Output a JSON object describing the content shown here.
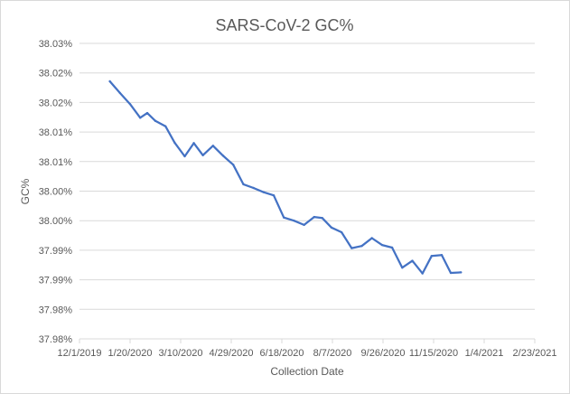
{
  "chart_data": {
    "type": "line",
    "title": "SARS-CoV-2 GC%",
    "xlabel": "Collection Date",
    "ylabel": "GC%",
    "xlim": [
      "2019-12-01",
      "2021-02-23"
    ],
    "ylim": [
      37.976,
      38.032
    ],
    "grid": "horizontal",
    "legend": "none",
    "colors": {
      "line": "#4472c4",
      "grid": "#d9d9d9",
      "text": "#595959"
    },
    "x_tick_labels": [
      "12/1/2019",
      "1/20/2020",
      "3/10/2020",
      "4/29/2020",
      "6/18/2020",
      "8/7/2020",
      "9/26/2020",
      "11/15/2020",
      "1/4/2021",
      "2/23/2021"
    ],
    "x_tick_dates": [
      "2019-12-01",
      "2020-01-20",
      "2020-03-10",
      "2020-04-29",
      "2020-06-18",
      "2020-08-07",
      "2020-09-26",
      "2020-11-15",
      "2021-01-04",
      "2021-02-23"
    ],
    "y_tick_labels": [
      "37.98%",
      "37.98%",
      "37.99%",
      "37.99%",
      "38.00%",
      "38.00%",
      "38.01%",
      "38.01%",
      "38.02%",
      "38.02%",
      "38.03%"
    ],
    "y_tick_values": [
      37.976,
      37.9816,
      37.9872,
      37.9928,
      37.9984,
      38.004,
      38.0096,
      38.0152,
      38.0208,
      38.0264,
      38.032
    ],
    "series": [
      {
        "points": [
          [
            "2019-12-31",
            38.0248
          ],
          [
            "2020-01-10",
            38.0226
          ],
          [
            "2020-01-20",
            38.0205
          ],
          [
            "2020-01-30",
            38.0179
          ],
          [
            "2020-02-06",
            38.0188
          ],
          [
            "2020-02-14",
            38.0173
          ],
          [
            "2020-02-24",
            38.0163
          ],
          [
            "2020-03-04",
            38.0132
          ],
          [
            "2020-03-14",
            38.0106
          ],
          [
            "2020-03-23",
            38.0131
          ],
          [
            "2020-04-01",
            38.0108
          ],
          [
            "2020-04-11",
            38.0126
          ],
          [
            "2020-04-21",
            38.0107
          ],
          [
            "2020-05-01",
            38.009
          ],
          [
            "2020-05-11",
            38.0053
          ],
          [
            "2020-05-21",
            38.0046
          ],
          [
            "2020-05-31",
            38.0038
          ],
          [
            "2020-06-10",
            38.0032
          ],
          [
            "2020-06-20",
            37.999
          ],
          [
            "2020-06-30",
            37.9984
          ],
          [
            "2020-07-10",
            37.9976
          ],
          [
            "2020-07-20",
            37.9991
          ],
          [
            "2020-07-28",
            37.9989
          ],
          [
            "2020-08-06",
            37.9971
          ],
          [
            "2020-08-16",
            37.9962
          ],
          [
            "2020-08-26",
            37.9932
          ],
          [
            "2020-09-05",
            37.9936
          ],
          [
            "2020-09-15",
            37.9951
          ],
          [
            "2020-09-25",
            37.9938
          ],
          [
            "2020-10-05",
            37.9933
          ],
          [
            "2020-10-15",
            37.9895
          ],
          [
            "2020-10-25",
            37.9908
          ],
          [
            "2020-11-04",
            37.9884
          ],
          [
            "2020-11-13",
            37.9917
          ],
          [
            "2020-11-23",
            37.9919
          ],
          [
            "2020-12-02",
            37.9885
          ],
          [
            "2020-12-12",
            37.9886
          ]
        ]
      }
    ]
  }
}
